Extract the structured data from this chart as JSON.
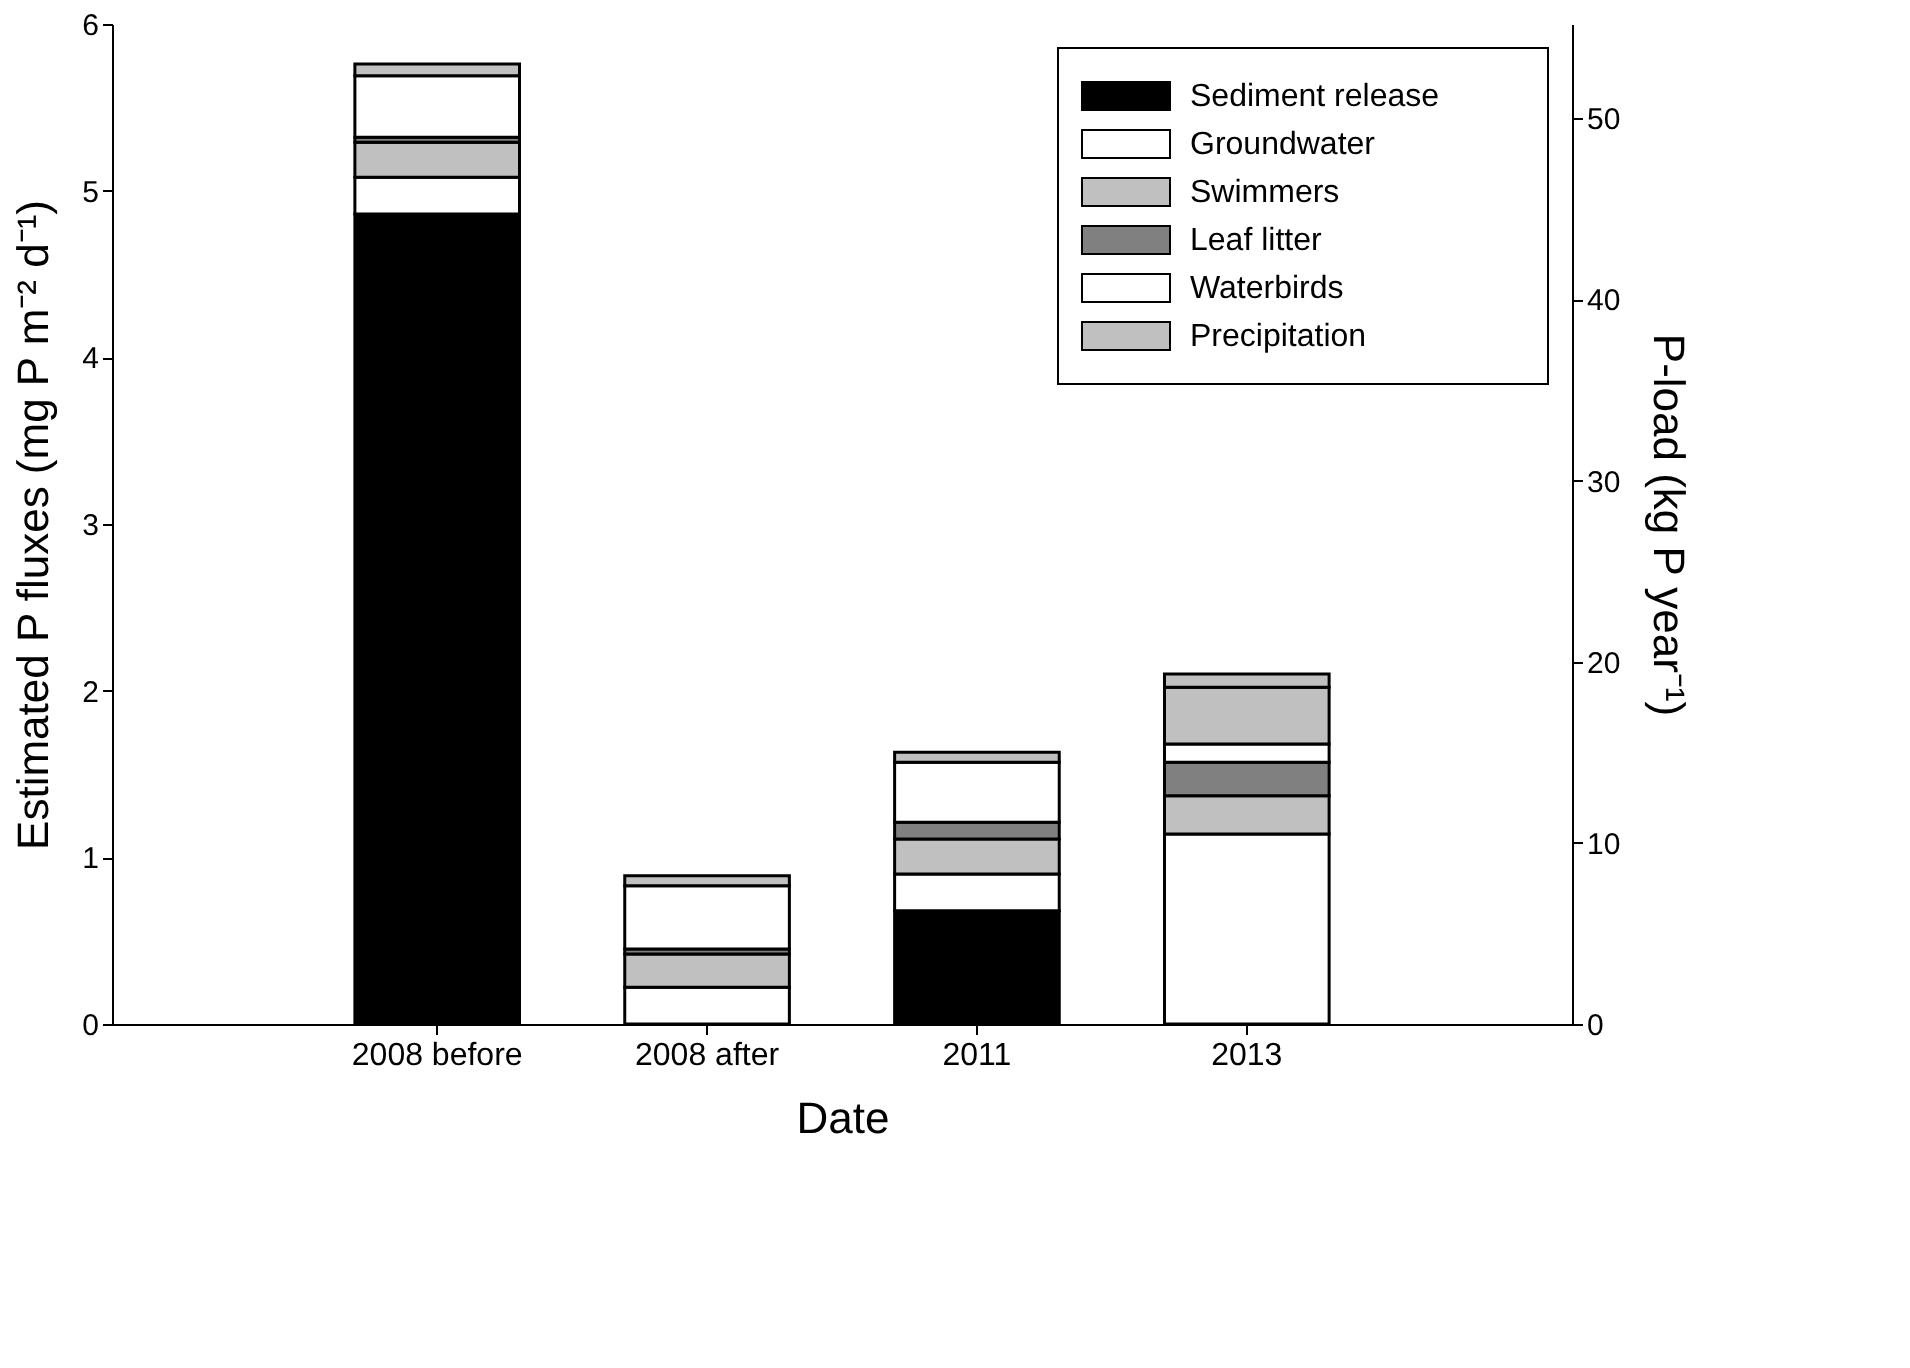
{
  "chart_data": {
    "type": "bar",
    "stacked": true,
    "xlabel": "Date",
    "ylabel": "Estimated P fluxes (mg P m⁻² d⁻¹)",
    "y2label": "P-load (kg P year⁻¹)",
    "categories": [
      "2008 before",
      "2008 after",
      "2011",
      "2013"
    ],
    "series": [
      {
        "name": "Sediment release",
        "color": "#000000",
        "values": [
          4.86,
          0,
          0.68,
          0
        ]
      },
      {
        "name": "Groundwater",
        "color": "#ffffff",
        "values": [
          0.22,
          0.22,
          0.22,
          1.14
        ]
      },
      {
        "name": "Swimmers",
        "color": "#c0c0c0",
        "values": [
          0.21,
          0.2,
          0.21,
          0.23
        ]
      },
      {
        "name": "Leaf litter",
        "color": "#808080",
        "values": [
          0.03,
          0.03,
          0.1,
          0.2
        ]
      },
      {
        "name": "Waterbirds",
        "color": "#ffffff",
        "values": [
          null,
          null,
          null,
          null
        ]
      },
      {
        "color": "#ffffff",
        "values": [
          0.37,
          0.38,
          0.36,
          0.11
        ]
      },
      {
        "color": "#c0c0c0",
        "values": [
          0.07,
          0.06,
          0.06,
          0.34
        ]
      },
      {
        "name": "Precipitation",
        "color": "#c0c0c0",
        "values": [
          null,
          null,
          null,
          0.08
        ]
      }
    ],
    "ylim": [
      0,
      6
    ],
    "yticks": [
      0,
      1,
      2,
      3,
      4,
      5,
      6
    ],
    "y2lim": [
      0,
      55.2
    ],
    "y2ticks": [
      0,
      10,
      20,
      30,
      40,
      50
    ],
    "legend": "top right",
    "grid": false
  }
}
